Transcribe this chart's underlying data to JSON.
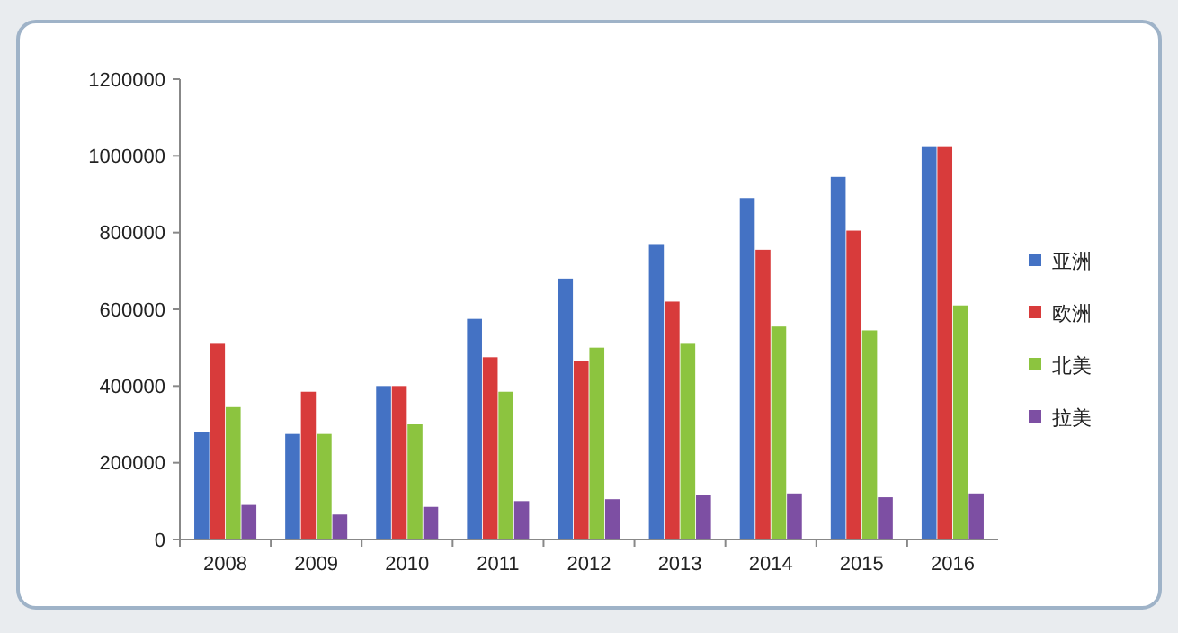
{
  "chart_data": {
    "type": "bar",
    "categories": [
      "2008",
      "2009",
      "2010",
      "2011",
      "2012",
      "2013",
      "2014",
      "2015",
      "2016"
    ],
    "series": [
      {
        "name": "亚洲",
        "color": "#4472c4",
        "values": [
          280000,
          275000,
          400000,
          575000,
          680000,
          770000,
          890000,
          945000,
          1025000
        ]
      },
      {
        "name": "欧洲",
        "color": "#d83b3b",
        "values": [
          510000,
          385000,
          400000,
          475000,
          465000,
          620000,
          755000,
          805000,
          1025000
        ]
      },
      {
        "name": "北美",
        "color": "#8cc43f",
        "values": [
          345000,
          275000,
          300000,
          385000,
          500000,
          510000,
          555000,
          545000,
          610000
        ]
      },
      {
        "name": "拉美",
        "color": "#7d4fa3",
        "values": [
          90000,
          65000,
          85000,
          100000,
          105000,
          115000,
          120000,
          110000,
          120000
        ]
      }
    ],
    "ylim": [
      0,
      1200000
    ],
    "yticks": [
      0,
      200000,
      400000,
      600000,
      800000,
      1000000,
      1200000
    ],
    "grid": false,
    "legend": "right"
  }
}
